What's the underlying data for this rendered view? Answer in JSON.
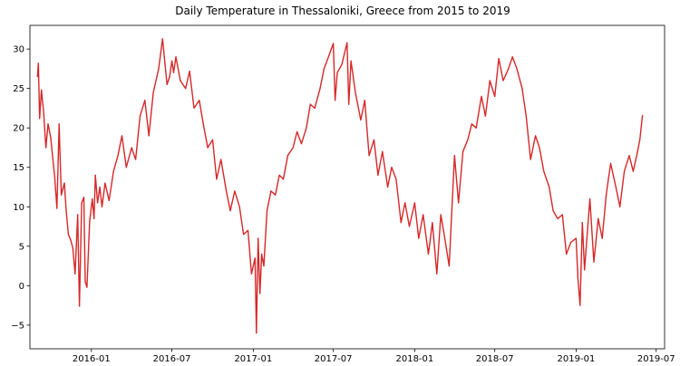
{
  "chart_data": {
    "type": "line",
    "title": "Daily Temperature in Thessaloniki, Greece from 2015 to 2019",
    "xlabel": "",
    "ylabel": "",
    "x_range": [
      "2015-08-15",
      "2019-07-20"
    ],
    "ylim": [
      -8,
      33
    ],
    "x_ticks": [
      "2016-01",
      "2016-07",
      "2017-01",
      "2017-07",
      "2018-01",
      "2018-07",
      "2019-01",
      "2019-07"
    ],
    "y_ticks": [
      -5,
      0,
      5,
      10,
      15,
      20,
      25,
      30
    ],
    "grid": false,
    "legend": "none",
    "colors": {
      "line": "#d62728",
      "axes": "#000000",
      "background": "#ffffff"
    },
    "series": [
      {
        "color": "#d62728",
        "x": [
          "2015-09-01",
          "2015-09-03",
          "2015-09-06",
          "2015-09-10",
          "2015-09-15",
          "2015-09-20",
          "2015-09-25",
          "2015-10-01",
          "2015-10-05",
          "2015-10-10",
          "2015-10-15",
          "2015-10-20",
          "2015-10-25",
          "2015-11-01",
          "2015-11-05",
          "2015-11-10",
          "2015-11-15",
          "2015-11-20",
          "2015-11-25",
          "2015-12-01",
          "2015-12-05",
          "2015-12-10",
          "2015-12-15",
          "2015-12-18",
          "2015-12-22",
          "2015-12-28",
          "2016-01-03",
          "2016-01-07",
          "2016-01-10",
          "2016-01-15",
          "2016-01-20",
          "2016-01-25",
          "2016-02-01",
          "2016-02-10",
          "2016-02-20",
          "2016-03-01",
          "2016-03-10",
          "2016-03-20",
          "2016-04-01",
          "2016-04-10",
          "2016-04-20",
          "2016-05-01",
          "2016-05-10",
          "2016-05-20",
          "2016-06-01",
          "2016-06-10",
          "2016-06-20",
          "2016-06-26",
          "2016-07-01",
          "2016-07-05",
          "2016-07-10",
          "2016-07-20",
          "2016-08-01",
          "2016-08-10",
          "2016-08-20",
          "2016-09-01",
          "2016-09-10",
          "2016-09-20",
          "2016-10-01",
          "2016-10-10",
          "2016-10-20",
          "2016-11-01",
          "2016-11-10",
          "2016-11-20",
          "2016-12-01",
          "2016-12-10",
          "2016-12-20",
          "2016-12-28",
          "2017-01-05",
          "2017-01-08",
          "2017-01-12",
          "2017-01-16",
          "2017-01-20",
          "2017-01-25",
          "2017-02-01",
          "2017-02-10",
          "2017-02-20",
          "2017-03-01",
          "2017-03-10",
          "2017-03-20",
          "2017-04-01",
          "2017-04-10",
          "2017-04-20",
          "2017-05-01",
          "2017-05-10",
          "2017-05-20",
          "2017-06-01",
          "2017-06-10",
          "2017-06-20",
          "2017-07-01",
          "2017-07-05",
          "2017-07-10",
          "2017-07-20",
          "2017-08-01",
          "2017-08-05",
          "2017-08-10",
          "2017-08-20",
          "2017-09-01",
          "2017-09-10",
          "2017-09-20",
          "2017-10-01",
          "2017-10-10",
          "2017-10-20",
          "2017-11-01",
          "2017-11-10",
          "2017-11-20",
          "2017-12-01",
          "2017-12-10",
          "2017-12-20",
          "2018-01-01",
          "2018-01-10",
          "2018-01-20",
          "2018-02-01",
          "2018-02-10",
          "2018-02-20",
          "2018-03-01",
          "2018-03-10",
          "2018-03-20",
          "2018-04-01",
          "2018-04-10",
          "2018-04-20",
          "2018-05-01",
          "2018-05-10",
          "2018-05-20",
          "2018-06-01",
          "2018-06-10",
          "2018-06-20",
          "2018-07-01",
          "2018-07-10",
          "2018-07-20",
          "2018-08-01",
          "2018-08-10",
          "2018-08-20",
          "2018-09-01",
          "2018-09-10",
          "2018-09-20",
          "2018-10-01",
          "2018-10-10",
          "2018-10-20",
          "2018-11-01",
          "2018-11-10",
          "2018-11-20",
          "2018-12-01",
          "2018-12-10",
          "2018-12-20",
          "2019-01-01",
          "2019-01-05",
          "2019-01-10",
          "2019-01-15",
          "2019-01-20",
          "2019-02-01",
          "2019-02-10",
          "2019-02-20",
          "2019-03-01",
          "2019-03-10",
          "2019-03-20",
          "2019-04-01",
          "2019-04-10",
          "2019-04-20",
          "2019-05-01",
          "2019-05-10",
          "2019-05-20",
          "2019-05-25",
          "2019-05-31"
        ],
        "y": [
          26.5,
          28.2,
          21.2,
          24.8,
          22.0,
          17.5,
          20.5,
          18.8,
          16.5,
          13.8,
          9.8,
          20.5,
          11.5,
          13.0,
          9.5,
          6.5,
          5.8,
          4.8,
          1.5,
          9.0,
          -2.6,
          10.5,
          11.2,
          0.5,
          -0.2,
          8.2,
          11.0,
          8.5,
          14.0,
          10.5,
          12.5,
          10.0,
          13.0,
          10.8,
          14.5,
          16.5,
          19.0,
          15.0,
          17.5,
          16.0,
          21.5,
          23.5,
          19.0,
          24.5,
          27.5,
          31.3,
          25.5,
          26.5,
          28.5,
          27.0,
          29.0,
          26.0,
          25.0,
          27.2,
          22.5,
          23.5,
          20.5,
          17.5,
          18.5,
          13.5,
          16.0,
          12.0,
          9.5,
          12.0,
          10.0,
          6.5,
          7.0,
          1.5,
          3.5,
          -6.0,
          6.0,
          -1.0,
          4.0,
          2.5,
          9.5,
          12.0,
          11.5,
          14.0,
          13.5,
          16.5,
          17.5,
          19.5,
          18.0,
          20.0,
          23.0,
          22.5,
          25.0,
          27.5,
          29.0,
          30.7,
          23.5,
          27.0,
          28.0,
          30.8,
          23.0,
          28.5,
          24.5,
          21.0,
          23.5,
          16.5,
          18.5,
          14.0,
          17.0,
          12.5,
          15.0,
          13.5,
          8.0,
          10.5,
          7.5,
          10.5,
          6.0,
          9.0,
          4.0,
          8.0,
          1.5,
          9.0,
          6.0,
          2.5,
          16.5,
          10.5,
          17.0,
          18.5,
          20.5,
          20.0,
          24.0,
          21.5,
          26.0,
          24.0,
          28.8,
          26.0,
          27.5,
          29.0,
          27.5,
          25.0,
          21.5,
          16.0,
          19.0,
          17.5,
          14.5,
          12.5,
          9.5,
          8.5,
          9.0,
          4.0,
          5.5,
          6.0,
          1.0,
          -2.5,
          8.0,
          2.0,
          11.0,
          3.0,
          8.5,
          6.0,
          11.5,
          15.5,
          12.5,
          10.0,
          14.5,
          16.5,
          14.5,
          17.0,
          18.5,
          21.6
        ]
      }
    ]
  }
}
